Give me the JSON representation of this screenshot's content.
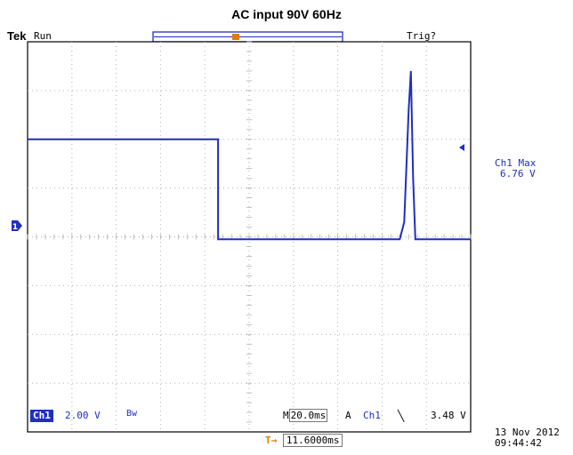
{
  "caption": "AC input 90V 60Hz",
  "header": {
    "brand": "Tek",
    "run_status": "Run",
    "trigger_status": "Trig?"
  },
  "side_readout": {
    "label": "Ch1 Max",
    "value": "6.76 V"
  },
  "bottom_bar": {
    "channel": "Ch1",
    "volts_per_div": "2.00 V",
    "bandwidth_symbol": "Bw",
    "time_prefix": "M",
    "time_per_div": "20.0ms",
    "acq_mode": "A",
    "trigger_source": "Ch1",
    "trigger_slope": "╲",
    "trigger_level": "3.48 V",
    "date": "13 Nov 2012",
    "time": "09:44:42",
    "trigger_marker": "T",
    "delta_arrow": "→",
    "trigger_offset": "11.6000ms"
  },
  "colors": {
    "trace": "#1f2fbf",
    "grid": "#b0b0b0",
    "trigger_marker": "#e07a10"
  },
  "waveform": {
    "units": "divisions",
    "x_range": [
      0,
      10
    ],
    "y_range": [
      -4,
      4
    ],
    "points": [
      [
        0,
        2.0
      ],
      [
        4.3,
        2.0
      ],
      [
        4.3,
        -0.05
      ],
      [
        8.4,
        -0.05
      ],
      [
        8.5,
        0.3
      ],
      [
        8.6,
        2.6
      ],
      [
        8.65,
        3.4
      ],
      [
        8.7,
        1.2
      ],
      [
        8.75,
        -0.05
      ],
      [
        10,
        -0.05
      ]
    ]
  }
}
